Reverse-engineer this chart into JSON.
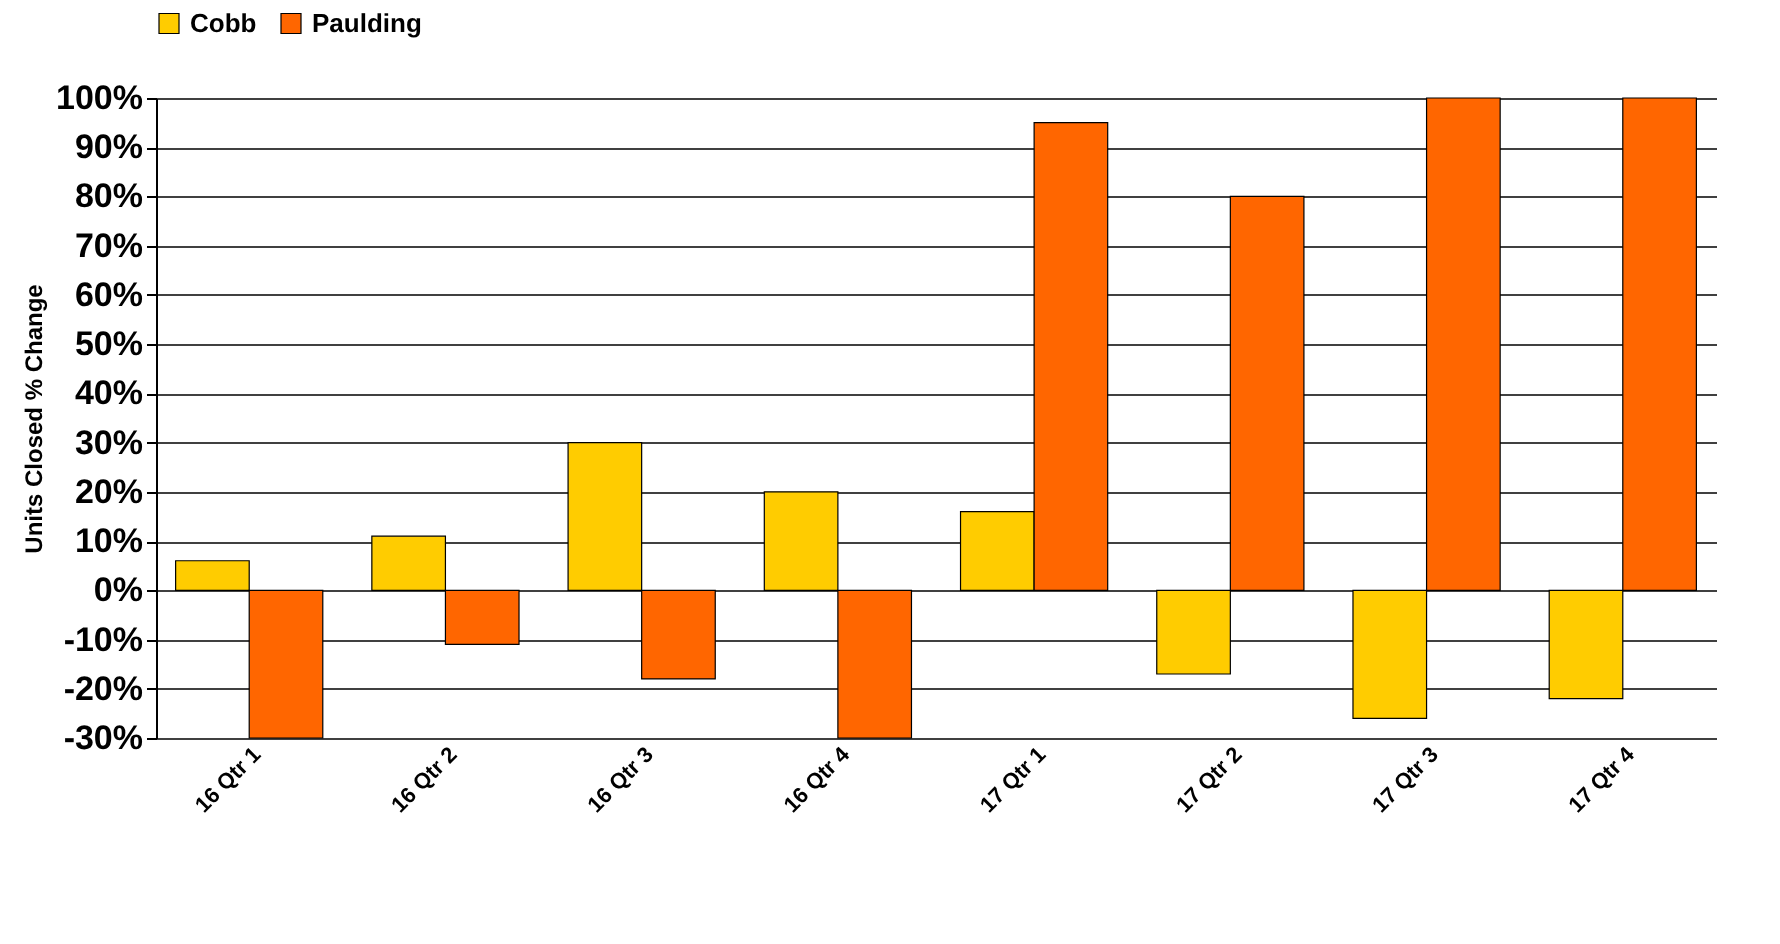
{
  "chart_data": {
    "type": "bar",
    "ylabel": "Units Closed % Change",
    "categories": [
      "16 Qtr 1",
      "16 Qtr 2",
      "16 Qtr 3",
      "16 Qtr 4",
      "17 Qtr 1",
      "17 Qtr 2",
      "17 Qtr 3",
      "17 Qtr 4"
    ],
    "series": [
      {
        "name": "Cobb",
        "color": "#ffcc00",
        "values": [
          6,
          11,
          30,
          20,
          16,
          -17,
          -26,
          -22
        ]
      },
      {
        "name": "Paulding",
        "color": "#ff6600",
        "values": [
          -30,
          -11,
          -18,
          -30,
          95,
          80,
          100,
          100
        ]
      }
    ],
    "ylim": [
      -30,
      100
    ],
    "yticks": [
      {
        "value": -30,
        "label": "-30%"
      },
      {
        "value": -20,
        "label": "-20%"
      },
      {
        "value": -10,
        "label": "-10%"
      },
      {
        "value": 0,
        "label": "0%"
      },
      {
        "value": 10,
        "label": "10%"
      },
      {
        "value": 20,
        "label": "20%"
      },
      {
        "value": 30,
        "label": "30%"
      },
      {
        "value": 40,
        "label": "40%"
      },
      {
        "value": 50,
        "label": "50%"
      },
      {
        "value": 60,
        "label": "60%"
      },
      {
        "value": 70,
        "label": "70%"
      },
      {
        "value": 80,
        "label": "80%"
      },
      {
        "value": 90,
        "label": "90%"
      },
      {
        "value": 100,
        "label": "100%"
      }
    ],
    "grid": "y",
    "legend": "top"
  }
}
